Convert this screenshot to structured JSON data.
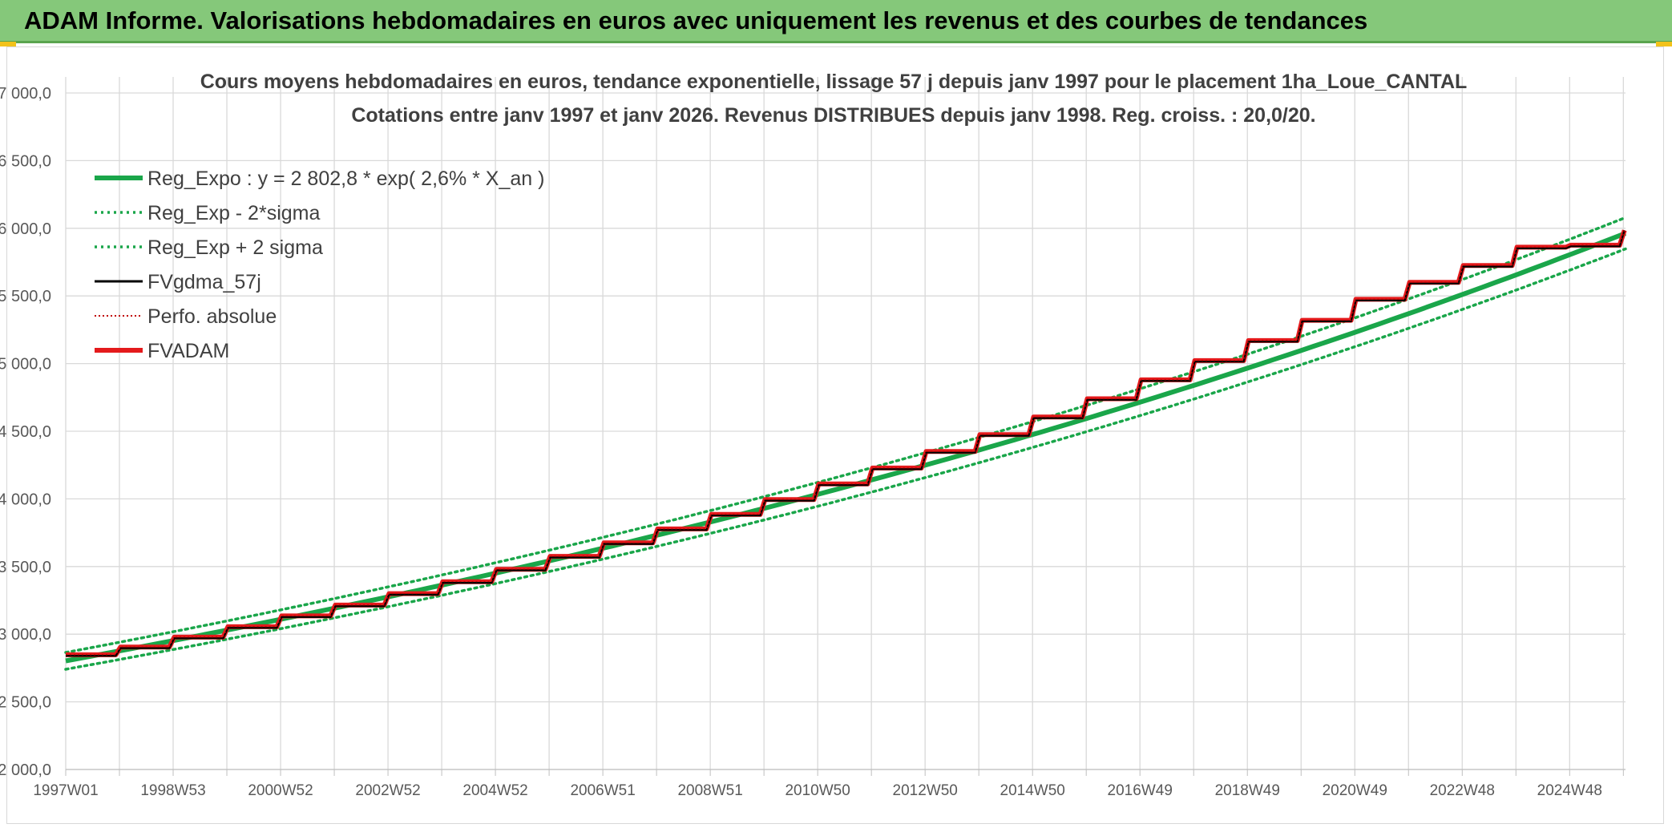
{
  "header": {
    "title": "ADAM Informe. Valorisations hebdomadaires en euros avec uniquement les revenus et des courbes de tendances"
  },
  "colors": {
    "header_bg": "#85c87a",
    "reg_expo": "#1aa64a",
    "reg_sigma": "#1aa64a",
    "fvgdma": "#000000",
    "perfo": "#c00000",
    "fvadam": "#e41a1c",
    "grid": "#d9d9d9"
  },
  "chart_data": {
    "type": "line",
    "title_line1": "Cours moyens hebdomadaires en euros, tendance exponentielle, lissage 57 j depuis janv 1997 pour le placement 1ha_Loue_CANTAL",
    "title_line2": "Cotations entre janv 1997 et janv 2026. Revenus DISTRIBUES depuis janv 1998. Reg. croiss. : 20,0/20.",
    "ylim": [
      2000,
      7000
    ],
    "y_ticks": [
      "2 000,0",
      "2 500,0",
      "3 000,0",
      "3 500,0",
      "4 000,0",
      "4 500,0",
      "5 000,0",
      "5 500,0",
      "6 000,0",
      "6 500,0",
      "7 000,0"
    ],
    "y_tick_values": [
      2000,
      2500,
      3000,
      3500,
      4000,
      4500,
      5000,
      5500,
      6000,
      6500,
      7000
    ],
    "x_range": [
      "1997W01",
      "2026W03"
    ],
    "x_tick_labels": [
      "1997W01",
      "1998W53",
      "2000W52",
      "2002W52",
      "2004W52",
      "2006W51",
      "2008W51",
      "2010W50",
      "2012W50",
      "2014W50",
      "2016W49",
      "2018W49",
      "2020W49",
      "2022W48",
      "2024W48"
    ],
    "grid": true,
    "legend_position": "top-left",
    "legend": [
      {
        "label": "Reg_Expo : y = 2 802,8 * exp( 2,6% *  X_an )",
        "style": "solid-thick",
        "color": "#1aa64a"
      },
      {
        "label": "Reg_Exp - 2*sigma",
        "style": "dotted",
        "color": "#1aa64a"
      },
      {
        "label": "Reg_Exp + 2 sigma",
        "style": "dotted",
        "color": "#1aa64a"
      },
      {
        "label": "FVgdma_57j",
        "style": "solid",
        "color": "#000000"
      },
      {
        "label": "Perfo. absolue",
        "style": "dotted-thin",
        "color": "#c00000"
      },
      {
        "label": "FVADAM",
        "style": "solid-thick",
        "color": "#e41a1c"
      }
    ],
    "regression": {
      "a": 2802.8,
      "rate": 0.026,
      "sigma_band": 62
    },
    "series_fvadam_steps": [
      {
        "year": 1997,
        "value": 2848
      },
      {
        "year": 1998,
        "value": 2905
      },
      {
        "year": 1999,
        "value": 2978
      },
      {
        "year": 2000,
        "value": 3055
      },
      {
        "year": 2001,
        "value": 3135
      },
      {
        "year": 2002,
        "value": 3215
      },
      {
        "year": 2003,
        "value": 3300
      },
      {
        "year": 2004,
        "value": 3388
      },
      {
        "year": 2005,
        "value": 3480
      },
      {
        "year": 2006,
        "value": 3575
      },
      {
        "year": 2007,
        "value": 3675
      },
      {
        "year": 2008,
        "value": 3778
      },
      {
        "year": 2009,
        "value": 3885
      },
      {
        "year": 2010,
        "value": 3995
      },
      {
        "year": 2011,
        "value": 4110
      },
      {
        "year": 2012,
        "value": 4228
      },
      {
        "year": 2013,
        "value": 4350
      },
      {
        "year": 2014,
        "value": 4475
      },
      {
        "year": 2015,
        "value": 4605
      },
      {
        "year": 2016,
        "value": 4740
      },
      {
        "year": 2017,
        "value": 4880
      },
      {
        "year": 2018,
        "value": 5022
      },
      {
        "year": 2019,
        "value": 5170
      },
      {
        "year": 2020,
        "value": 5320
      },
      {
        "year": 2021,
        "value": 5475
      },
      {
        "year": 2022,
        "value": 5600
      },
      {
        "year": 2023,
        "value": 5725
      },
      {
        "year": 2024,
        "value": 5860
      },
      {
        "year": 2025,
        "value": 5875
      }
    ],
    "x_end_year": 2026.04,
    "last_value": 5985
  }
}
